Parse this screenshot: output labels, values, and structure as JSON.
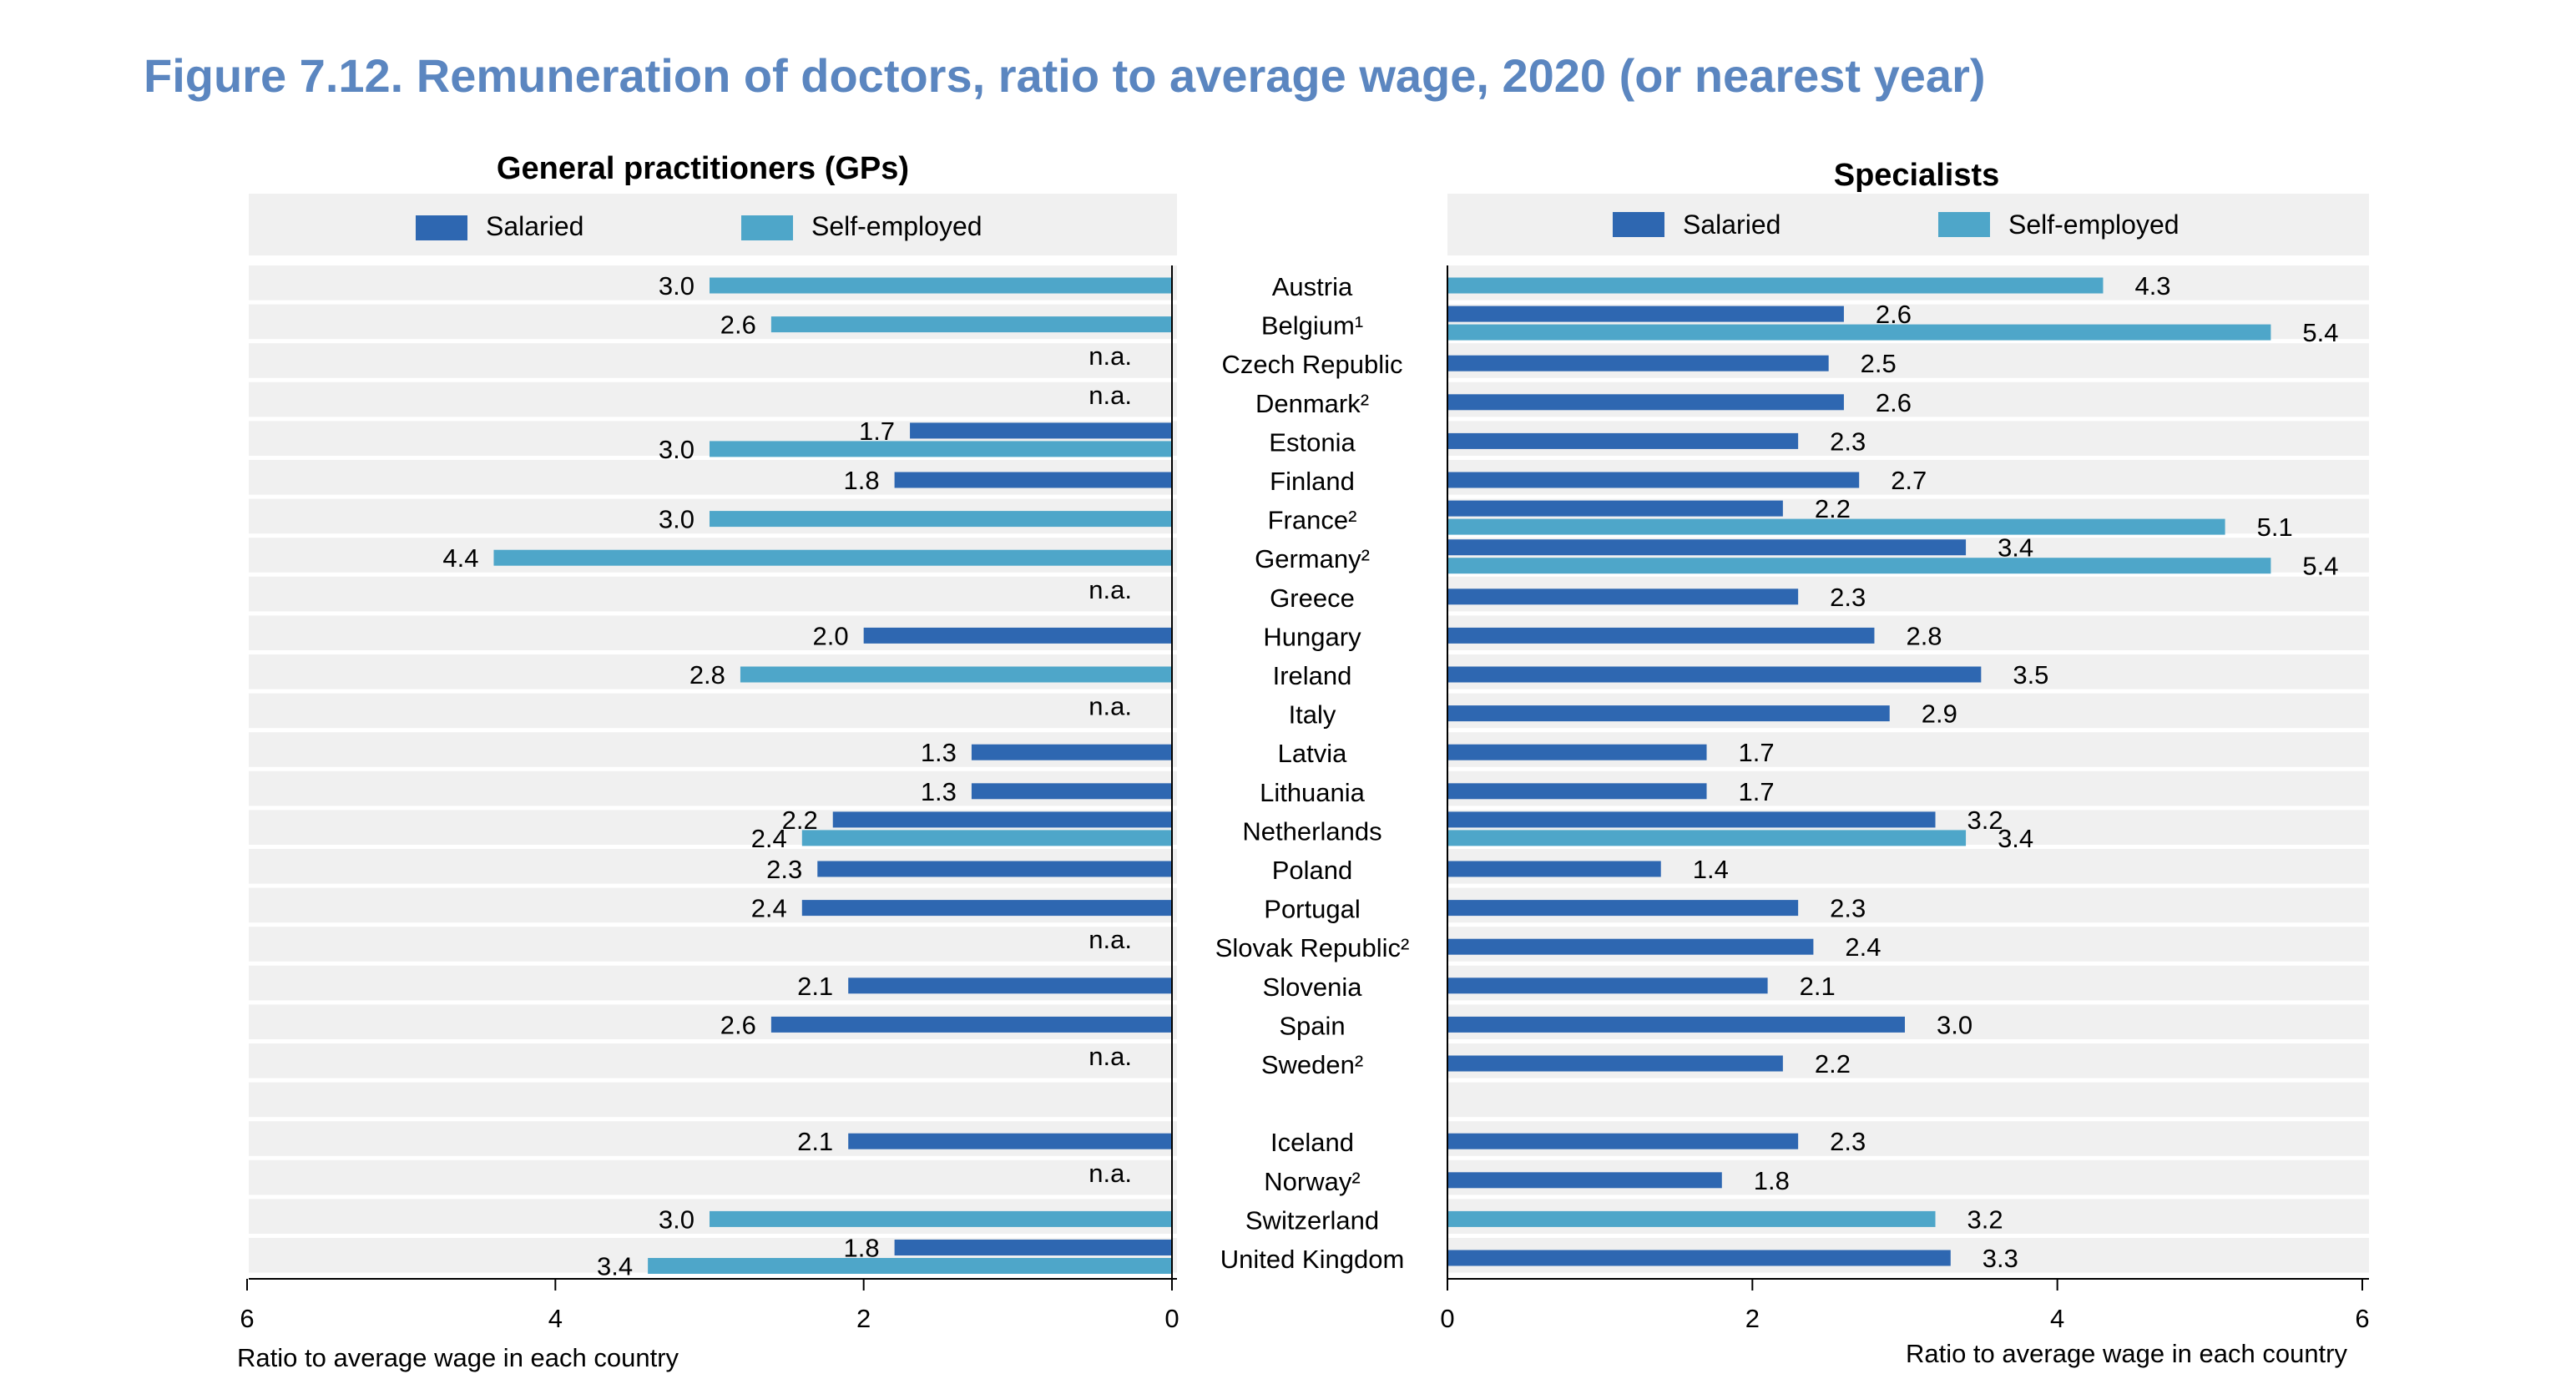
{
  "figure_title": "Figure 7.12. Remuneration of doctors, ratio to average wage, 2020 (or nearest year)",
  "colors": {
    "salaried": "#2e67b1",
    "self_employed": "#4ea6c9",
    "band": "#f0f0f0"
  },
  "chart_data": [
    {
      "type": "bar",
      "orientation": "horizontal",
      "title": "General practitioners (GPs)",
      "xlabel": "Ratio to average wage in each country",
      "xlim": [
        0,
        6
      ],
      "xticks": [
        6,
        4,
        2,
        0
      ],
      "direction": "reversed",
      "legend": [
        "Salaried",
        "Self-employed"
      ],
      "legend_position": "top",
      "series": [
        {
          "name": "Salaried",
          "values": [
            null,
            null,
            null,
            null,
            1.7,
            1.8,
            null,
            null,
            null,
            2.0,
            null,
            null,
            1.3,
            1.3,
            2.2,
            2.3,
            2.4,
            null,
            2.1,
            2.6,
            null,
            2.1,
            null,
            null,
            1.8
          ]
        },
        {
          "name": "Self-employed",
          "values": [
            3.0,
            2.6,
            null,
            null,
            3.0,
            null,
            3.0,
            4.4,
            null,
            null,
            2.8,
            null,
            null,
            null,
            2.4,
            null,
            null,
            null,
            null,
            null,
            null,
            null,
            null,
            3.0,
            3.4
          ]
        }
      ],
      "na": [
        "Czech Republic",
        "Denmark²",
        "Greece",
        "Italy",
        "Slovak Republic²",
        "Sweden²",
        "Norway²"
      ],
      "na_label": "n.a."
    },
    {
      "type": "bar",
      "orientation": "horizontal",
      "title": "Specialists",
      "xlabel": "Ratio to average wage in each country",
      "xlim": [
        0,
        6
      ],
      "xticks": [
        0,
        2,
        4,
        6
      ],
      "legend": [
        "Salaried",
        "Self-employed"
      ],
      "legend_position": "top",
      "series": [
        {
          "name": "Salaried",
          "values": [
            null,
            2.6,
            2.5,
            2.6,
            2.3,
            2.7,
            2.2,
            3.4,
            2.3,
            2.8,
            3.5,
            2.9,
            1.7,
            1.7,
            3.2,
            1.4,
            2.3,
            2.4,
            2.1,
            3.0,
            2.2,
            2.3,
            1.8,
            null,
            3.3
          ]
        },
        {
          "name": "Self-employed",
          "values": [
            4.3,
            5.4,
            null,
            null,
            null,
            null,
            5.1,
            5.4,
            null,
            null,
            null,
            null,
            null,
            null,
            3.4,
            null,
            null,
            null,
            null,
            null,
            null,
            null,
            null,
            3.2,
            null
          ]
        }
      ]
    }
  ],
  "countries": [
    "Austria",
    "Belgium¹",
    "Czech Republic",
    "Denmark²",
    "Estonia",
    "Finland",
    "France²",
    "Germany²",
    "Greece",
    "Hungary",
    "Ireland",
    "Italy",
    "Latvia",
    "Lithuania",
    "Netherlands",
    "Poland",
    "Portugal",
    "Slovak Republic²",
    "Slovenia",
    "Spain",
    "Sweden²",
    "Iceland",
    "Norway²",
    "Switzerland",
    "United Kingdom"
  ]
}
